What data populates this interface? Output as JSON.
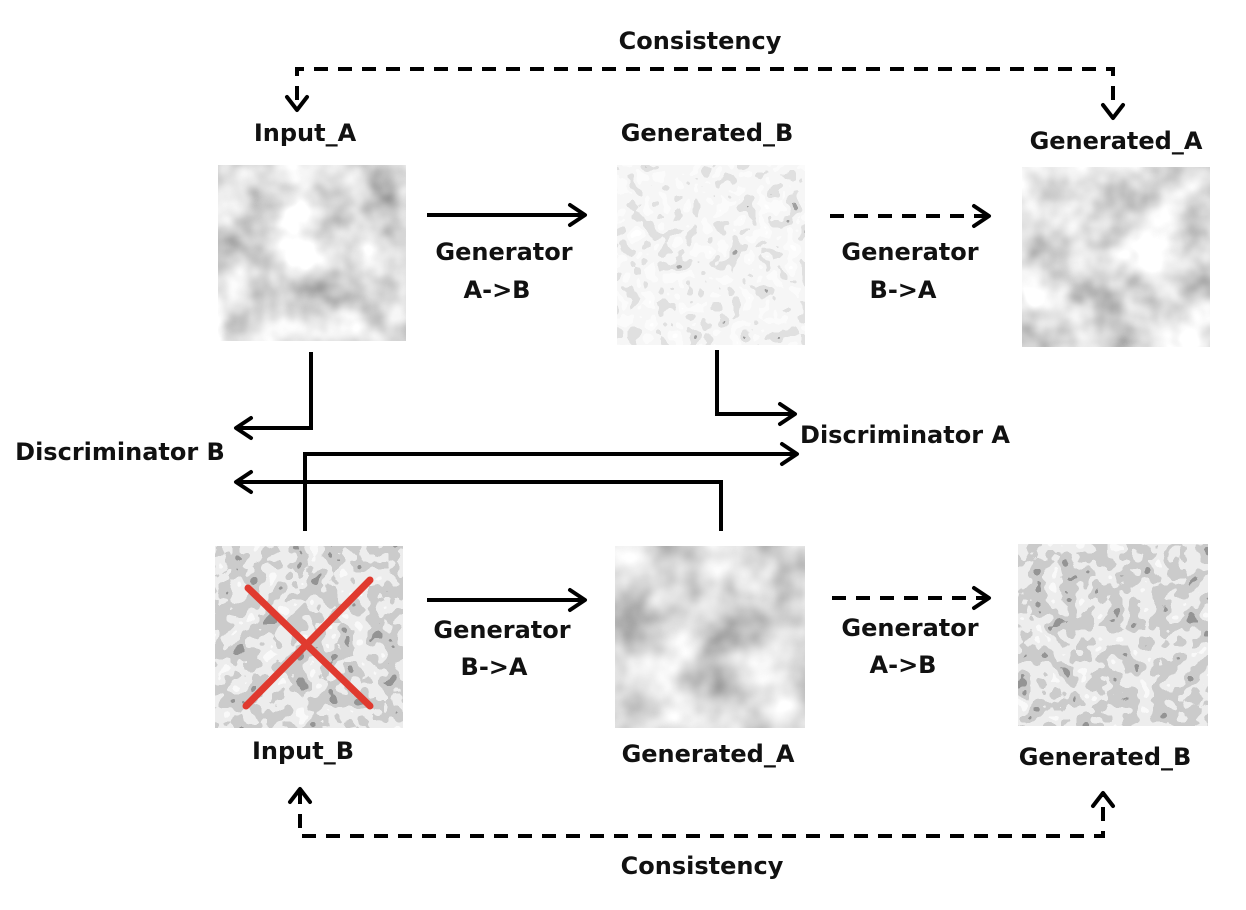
{
  "labels": {
    "consistency_top": "Consistency",
    "consistency_bottom": "Consistency",
    "input_a": "Input_A",
    "generated_b_top": "Generated_B",
    "generated_a_top": "Generated_A",
    "input_b": "Input_B",
    "generated_a_bottom": "Generated_A",
    "generated_b_bottom": "Generated_B",
    "discriminator_b": "Discriminator B",
    "discriminator_a": "Discriminator A"
  },
  "generators": {
    "top_left": [
      "Generator",
      "A->B"
    ],
    "top_right": [
      "Generator",
      "B->A"
    ],
    "bottom_left": [
      "Generator",
      "B->A"
    ],
    "bottom_right": [
      "Generator",
      "A->B"
    ]
  },
  "colors": {
    "ink": "#000000",
    "cross": "#e03a2f"
  }
}
